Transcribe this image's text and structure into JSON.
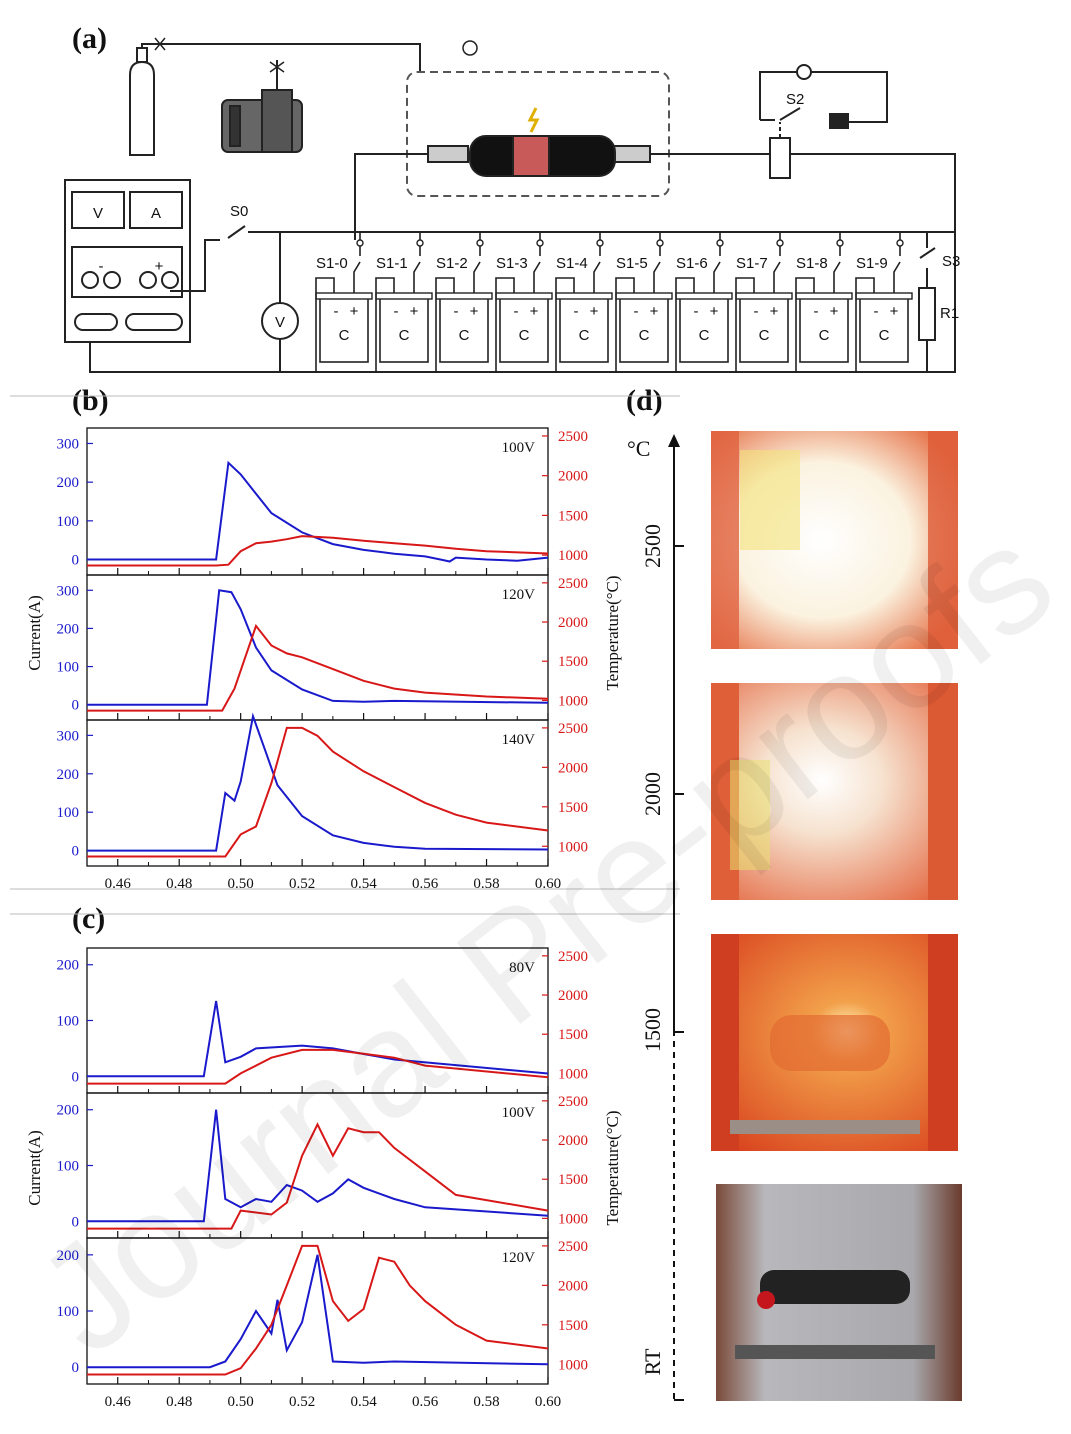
{
  "panel_labels": {
    "a": "(a)",
    "b": "(b)",
    "c": "(c)",
    "d": "(d)"
  },
  "circuit": {
    "meter_v": "V",
    "meter_a": "A",
    "voltmeter": "V",
    "minus": "-",
    "plus": "+",
    "switch_s0": "S0",
    "switch_s2": "S2",
    "switch_s3": "S3",
    "resistor": "R1",
    "capacitor": "C",
    "switches": [
      "S1-0",
      "S1-1",
      "S1-2",
      "S1-3",
      "S1-4",
      "S1-5",
      "S1-6",
      "S1-7",
      "S1-8",
      "S1-9"
    ]
  },
  "axis_labels": {
    "b_left": "Current(A)",
    "b_right": "Temperature(°C)",
    "c_left": "Current(A)",
    "c_right": "Temperature(°C)"
  },
  "temp_scale": {
    "unit": "°C",
    "ticks": [
      "2500",
      "2000",
      "1500"
    ],
    "bottom": "RT"
  },
  "watermark": "Journal Pre-proofs",
  "colors": {
    "current": "#1a1acc",
    "temperature": "#d81818",
    "axis": "#111111"
  },
  "chart_data": [
    {
      "type": "line",
      "panel": "b",
      "voltage_label": "100V",
      "xlim": [
        0.45,
        0.6
      ],
      "current_ticks": [
        0,
        100,
        200,
        300
      ],
      "current_ylim": [
        -40,
        340
      ],
      "temp_ticks": [
        1000,
        1500,
        2000,
        2500
      ],
      "temp_ylim": [
        750,
        2600
      ],
      "series": [
        {
          "name": "",
          "axis": "current",
          "x": [
            0.45,
            0.492,
            0.496,
            0.5,
            0.505,
            0.51,
            0.52,
            0.53,
            0.54,
            0.55,
            0.56,
            0.565,
            0.568,
            0.57,
            0.58,
            0.59,
            0.6
          ],
          "y": [
            0,
            0,
            250,
            220,
            170,
            120,
            70,
            40,
            25,
            15,
            8,
            0,
            -5,
            5,
            0,
            -3,
            5
          ]
        },
        {
          "name": "",
          "axis": "temperature",
          "x": [
            0.45,
            0.492,
            0.496,
            0.5,
            0.505,
            0.51,
            0.515,
            0.52,
            0.53,
            0.54,
            0.55,
            0.56,
            0.57,
            0.58,
            0.6
          ],
          "y": [
            870,
            870,
            880,
            1050,
            1150,
            1170,
            1200,
            1240,
            1220,
            1180,
            1150,
            1120,
            1080,
            1050,
            1020
          ]
        }
      ]
    },
    {
      "type": "line",
      "panel": "b",
      "voltage_label": "120V",
      "xlim": [
        0.45,
        0.6
      ],
      "current_ticks": [
        0,
        100,
        200,
        300
      ],
      "current_ylim": [
        -40,
        340
      ],
      "temp_ticks": [
        1000,
        1500,
        2000,
        2500
      ],
      "temp_ylim": [
        750,
        2600
      ],
      "series": [
        {
          "name": "",
          "axis": "current",
          "x": [
            0.45,
            0.489,
            0.493,
            0.497,
            0.5,
            0.505,
            0.51,
            0.52,
            0.53,
            0.54,
            0.55,
            0.6
          ],
          "y": [
            0,
            0,
            300,
            295,
            250,
            150,
            90,
            40,
            10,
            8,
            10,
            5
          ]
        },
        {
          "name": "",
          "axis": "temperature",
          "x": [
            0.45,
            0.494,
            0.498,
            0.505,
            0.51,
            0.515,
            0.52,
            0.53,
            0.54,
            0.55,
            0.56,
            0.58,
            0.6
          ],
          "y": [
            870,
            870,
            1150,
            1950,
            1700,
            1600,
            1550,
            1400,
            1250,
            1150,
            1100,
            1050,
            1020
          ]
        }
      ]
    },
    {
      "type": "line",
      "panel": "b",
      "voltage_label": "140V",
      "xlim": [
        0.45,
        0.6
      ],
      "current_ticks": [
        0,
        100,
        200,
        300
      ],
      "current_ylim": [
        -40,
        340
      ],
      "temp_ticks": [
        1000,
        1500,
        2000,
        2500
      ],
      "temp_ylim": [
        750,
        2600
      ],
      "series": [
        {
          "name": "",
          "axis": "current",
          "x": [
            0.45,
            0.492,
            0.495,
            0.498,
            0.5,
            0.504,
            0.508,
            0.512,
            0.52,
            0.53,
            0.54,
            0.55,
            0.56,
            0.6
          ],
          "y": [
            0,
            0,
            150,
            130,
            180,
            350,
            260,
            170,
            90,
            40,
            20,
            10,
            5,
            3
          ]
        },
        {
          "name": "",
          "axis": "temperature",
          "x": [
            0.45,
            0.495,
            0.5,
            0.505,
            0.51,
            0.515,
            0.52,
            0.525,
            0.53,
            0.54,
            0.55,
            0.56,
            0.57,
            0.58,
            0.6
          ],
          "y": [
            870,
            870,
            1150,
            1250,
            1800,
            2500,
            2500,
            2400,
            2200,
            1950,
            1750,
            1550,
            1400,
            1300,
            1200
          ]
        }
      ]
    },
    {
      "type": "line",
      "panel": "c",
      "voltage_label": "80V",
      "xlim": [
        0.45,
        0.6
      ],
      "current_ticks": [
        0,
        100,
        200
      ],
      "current_ylim": [
        -30,
        230
      ],
      "temp_ticks": [
        1000,
        1500,
        2000,
        2500
      ],
      "temp_ylim": [
        750,
        2600
      ],
      "series": [
        {
          "name": "",
          "axis": "current",
          "x": [
            0.45,
            0.488,
            0.492,
            0.495,
            0.5,
            0.505,
            0.52,
            0.53,
            0.54,
            0.55,
            0.6
          ],
          "y": [
            0,
            0,
            135,
            25,
            35,
            50,
            55,
            50,
            40,
            30,
            5
          ]
        },
        {
          "name": "",
          "axis": "temperature",
          "x": [
            0.45,
            0.495,
            0.5,
            0.51,
            0.52,
            0.53,
            0.54,
            0.55,
            0.56,
            0.6
          ],
          "y": [
            870,
            870,
            1000,
            1200,
            1300,
            1300,
            1250,
            1200,
            1100,
            950
          ]
        }
      ]
    },
    {
      "type": "line",
      "panel": "c",
      "voltage_label": "100V",
      "xlim": [
        0.45,
        0.6
      ],
      "current_ticks": [
        0,
        100,
        200
      ],
      "current_ylim": [
        -30,
        230
      ],
      "temp_ticks": [
        1000,
        1500,
        2000,
        2500
      ],
      "temp_ylim": [
        750,
        2600
      ],
      "series": [
        {
          "name": "",
          "axis": "current",
          "x": [
            0.45,
            0.488,
            0.492,
            0.495,
            0.5,
            0.505,
            0.51,
            0.515,
            0.52,
            0.525,
            0.53,
            0.535,
            0.54,
            0.55,
            0.56,
            0.6
          ],
          "y": [
            0,
            0,
            200,
            40,
            25,
            40,
            35,
            65,
            55,
            35,
            50,
            75,
            60,
            40,
            25,
            10
          ]
        },
        {
          "name": "",
          "axis": "temperature",
          "x": [
            0.45,
            0.497,
            0.5,
            0.51,
            0.515,
            0.52,
            0.525,
            0.53,
            0.535,
            0.54,
            0.545,
            0.55,
            0.56,
            0.57,
            0.6
          ],
          "y": [
            870,
            870,
            1100,
            1050,
            1200,
            1800,
            2200,
            1800,
            2150,
            2100,
            2100,
            1900,
            1600,
            1300,
            1100
          ]
        }
      ]
    },
    {
      "type": "line",
      "panel": "c",
      "voltage_label": "120V",
      "xlim": [
        0.45,
        0.6
      ],
      "current_ticks": [
        0,
        100,
        200
      ],
      "current_ylim": [
        -30,
        230
      ],
      "temp_ticks": [
        1000,
        1500,
        2000,
        2500
      ],
      "temp_ylim": [
        750,
        2600
      ],
      "series": [
        {
          "name": "",
          "axis": "current",
          "x": [
            0.45,
            0.49,
            0.495,
            0.5,
            0.505,
            0.51,
            0.512,
            0.515,
            0.52,
            0.525,
            0.53,
            0.54,
            0.55,
            0.6
          ],
          "y": [
            0,
            0,
            10,
            50,
            100,
            60,
            120,
            30,
            80,
            200,
            10,
            8,
            10,
            5
          ]
        },
        {
          "name": "",
          "axis": "temperature",
          "x": [
            0.45,
            0.495,
            0.5,
            0.505,
            0.51,
            0.515,
            0.52,
            0.525,
            0.53,
            0.535,
            0.54,
            0.545,
            0.55,
            0.555,
            0.56,
            0.57,
            0.58,
            0.6
          ],
          "y": [
            870,
            870,
            950,
            1200,
            1500,
            2000,
            2500,
            2500,
            1800,
            1550,
            1700,
            2350,
            2300,
            2000,
            1800,
            1500,
            1300,
            1200
          ]
        }
      ]
    }
  ]
}
